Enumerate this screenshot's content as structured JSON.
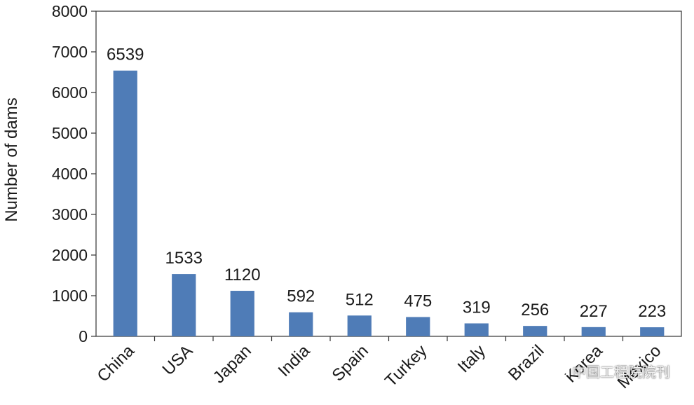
{
  "chart_data": {
    "type": "bar",
    "categories": [
      "China",
      "USA",
      "Japan",
      "India",
      "Spain",
      "Turkey",
      "Italy",
      "Brazil",
      "Korea",
      "Mexico"
    ],
    "values": [
      6539,
      1533,
      1120,
      592,
      512,
      475,
      319,
      256,
      227,
      223
    ],
    "data_labels": [
      "6539",
      "1533",
      "1120",
      "592",
      "512",
      "475",
      "319",
      "256",
      "227",
      "223"
    ],
    "title": "",
    "xlabel": "",
    "ylabel": "Number of dams",
    "ylim": [
      0,
      8000
    ],
    "yticks": [
      0,
      1000,
      2000,
      3000,
      4000,
      5000,
      6000,
      7000,
      8000
    ],
    "ytick_labels": [
      "0",
      "1000",
      "2000",
      "3000",
      "4000",
      "5000",
      "6000",
      "7000",
      "8000"
    ],
    "grid": false,
    "legend": "none",
    "bar_color": "#4f7cb7",
    "axis_color": "#333333"
  },
  "watermark": {
    "text": "中国工程院院刊",
    "icon": "wechat-icon"
  }
}
